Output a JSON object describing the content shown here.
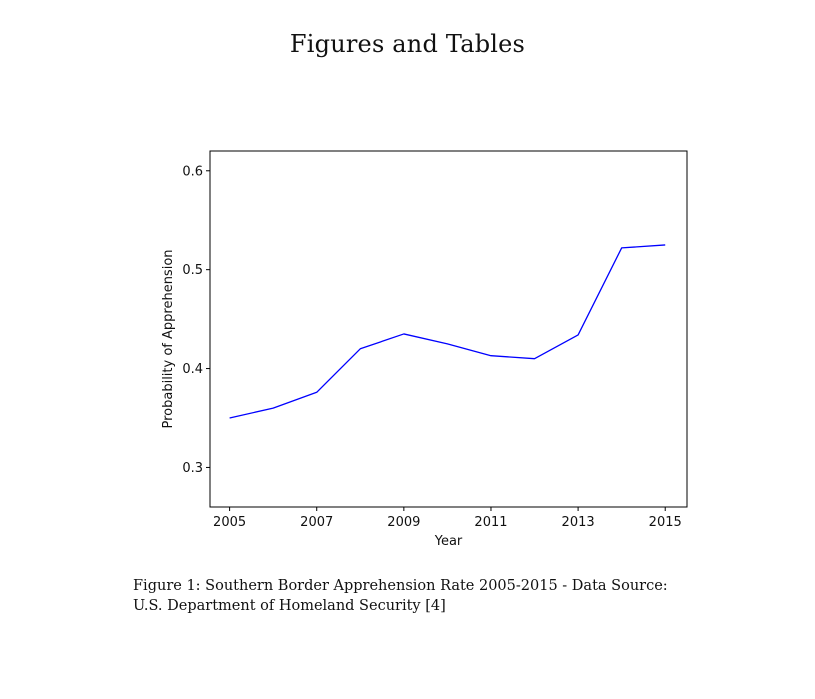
{
  "page": {
    "heading": "Figures and Tables"
  },
  "caption": {
    "text": "Figure 1: Southern Border Apprehension Rate 2005-2015 - Data Source: U.S. Department of Homeland Security [4]"
  },
  "chart_data": {
    "type": "line",
    "title": "",
    "xlabel": "Year",
    "ylabel": "Probability of Apprehension",
    "xlim": [
      2004.55,
      2015.5
    ],
    "ylim": [
      0.26,
      0.62
    ],
    "x_ticks": [
      2005,
      2007,
      2009,
      2011,
      2013,
      2015
    ],
    "y_ticks": [
      0.3,
      0.4,
      0.5,
      0.6
    ],
    "y_tick_labels": [
      "0.3",
      "0.4",
      "0.5",
      "0.6"
    ],
    "grid": false,
    "series": [
      {
        "color": "#0000ff",
        "x": [
          2005,
          2006,
          2007,
          2008,
          2009,
          2010,
          2011,
          2012,
          2013,
          2014,
          2015
        ],
        "y": [
          0.35,
          0.36,
          0.376,
          0.42,
          0.435,
          0.425,
          0.413,
          0.41,
          0.434,
          0.522,
          0.525
        ]
      }
    ]
  }
}
